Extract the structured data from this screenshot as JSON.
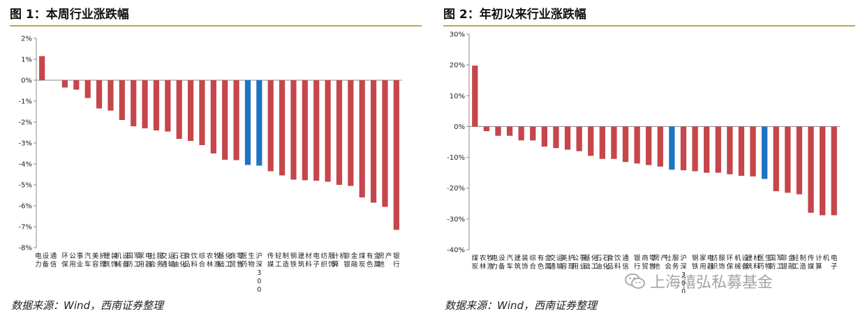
{
  "charts": [
    {
      "title": "图 1：本周行业涨跌幅",
      "source": "数据来源：Wind，西南证券整理",
      "chart_data": {
        "type": "bar",
        "ylim": [
          -8,
          2
        ],
        "yticks": [
          "2%",
          "1%",
          "0%",
          "-1%",
          "-2%",
          "-3%",
          "-4%",
          "-5%",
          "-6%",
          "-7%",
          "-8%"
        ],
        "ytick_values": [
          2,
          1,
          0,
          -1,
          -2,
          -3,
          -4,
          -5,
          -6,
          -7,
          -8
        ],
        "categories": [
          "电力设备",
          "通信",
          "环保",
          "公用事业",
          "汽车",
          "美容护理",
          "建筑装饰",
          "机械设备",
          "国防军工",
          "家用电器",
          "社会服务",
          "交通运输",
          "石油石化",
          "食品饮料",
          "综合",
          "农林牧渔",
          "基础化工",
          "商贸零售",
          "医药生物",
          "沪深300",
          "传媒",
          "轻工制造",
          "钢铁",
          "建筑材料",
          "电子",
          "纺织服饰",
          "计算机",
          "非银金融",
          "煤炭",
          "有色金属",
          "房地产",
          "银行"
        ],
        "values": [
          1.15,
          0,
          -0.35,
          -0.45,
          -0.85,
          -1.35,
          -1.45,
          -1.9,
          -2.2,
          -2.3,
          -2.4,
          -2.45,
          -2.8,
          -2.9,
          -3.1,
          -3.5,
          -3.8,
          -3.82,
          -4.05,
          -4.08,
          -4.35,
          -4.55,
          -4.75,
          -4.78,
          -4.8,
          -4.85,
          -5.0,
          -5.05,
          -5.6,
          -5.85,
          -6.05,
          -7.15
        ],
        "highlight": [
          "医药生物",
          "沪深300"
        ],
        "colors": {
          "bar": "#c5464b",
          "highlight": "#1f74c2"
        }
      }
    },
    {
      "title": "图 2：年初以来行业涨跌幅",
      "source": "数据来源：Wind，西南证券整理",
      "chart_data": {
        "type": "bar",
        "ylim": [
          -40,
          30
        ],
        "yticks": [
          "30%",
          "20%",
          "10%",
          "0%",
          "-10%",
          "-20%",
          "-30%",
          "-40%"
        ],
        "ytick_values": [
          30,
          20,
          10,
          0,
          -10,
          -20,
          -30,
          -40
        ],
        "categories": [
          "煤炭",
          "农林牧渔",
          "电力设备",
          "汽车",
          "建筑装饰",
          "综合",
          "有色金属",
          "交通运输",
          "美容护理",
          "公用事业",
          "基础化工",
          "石油石化",
          "食品饮料",
          "通信",
          "银行",
          "商贸零售",
          "房地产",
          "社会服务",
          "沪深300",
          "钢铁",
          "家用电器",
          "纺织服饰",
          "环保",
          "机械设备",
          "建筑材料",
          "医药生物",
          "国防军工",
          "非银金融",
          "轻工制造",
          "传媒",
          "计算机",
          "电子"
        ],
        "values": [
          19.8,
          -1.5,
          -3.0,
          -3.0,
          -4.5,
          -4.5,
          -6.5,
          -7.0,
          -7.5,
          -8.0,
          -9.5,
          -10.5,
          -10.5,
          -11.5,
          -12.0,
          -12.5,
          -13.0,
          -14.0,
          -14.2,
          -14.5,
          -15.0,
          -15.0,
          -15.5,
          -16.0,
          -16.2,
          -17.0,
          -21.0,
          -21.5,
          -22.0,
          -28.0,
          -28.8,
          -28.8
        ],
        "highlight": [
          "社会服务",
          "医药生物"
        ],
        "colors": {
          "bar": "#c5464b",
          "highlight": "#1f74c2"
        }
      }
    }
  ],
  "watermark": {
    "text": "上海禧弘私募基金",
    "icon": "wechat-icon"
  }
}
